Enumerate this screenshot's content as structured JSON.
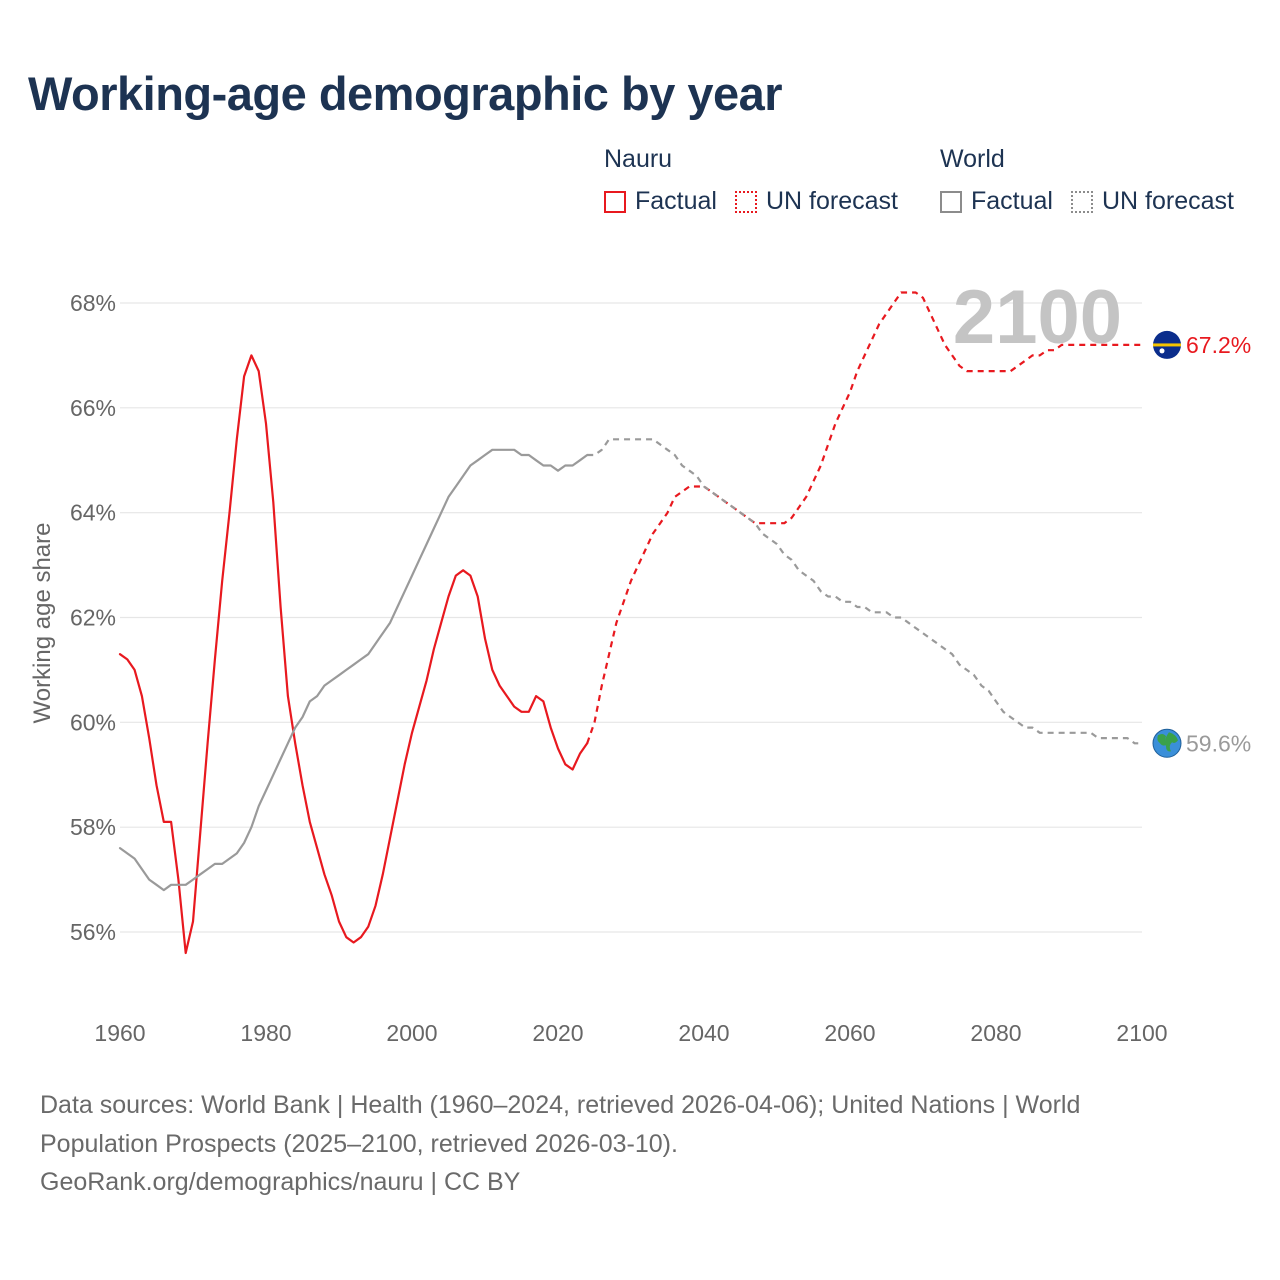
{
  "title": "Working-age demographic by year",
  "legend": {
    "nauru": {
      "name": "Nauru",
      "factual": "Factual",
      "forecast": "UN forecast"
    },
    "world": {
      "name": "World",
      "factual": "Factual",
      "forecast": "UN forecast"
    }
  },
  "footer": {
    "line1": "Data sources: World Bank | Health (1960–2024, retrieved 2026-04-06); United Nations | World",
    "line2": "Population Prospects (2025–2100, retrieved 2026-03-10).",
    "line3": "GeoRank.org/demographics/nauru | CC BY"
  },
  "colors": {
    "nauru": "#e8191f",
    "world": "#9a9a9a",
    "grid": "#e6e6e6",
    "tick": "#666666",
    "watermark": "#c4c4c4"
  },
  "chart_data": {
    "type": "line",
    "title": "Working-age demographic by year",
    "xlabel": "",
    "ylabel": "Working age share",
    "xlim": [
      1960,
      2100
    ],
    "ylim": [
      55,
      69
    ],
    "x_ticks": [
      1960,
      1980,
      2000,
      2020,
      2040,
      2060,
      2080,
      2100
    ],
    "y_ticks": [
      56,
      58,
      60,
      62,
      64,
      66,
      68
    ],
    "y_tick_labels": [
      "56%",
      "58%",
      "60%",
      "62%",
      "64%",
      "66%",
      "68%"
    ],
    "year_watermark": "2100",
    "series": [
      {
        "name": "Nauru",
        "segment": "Factual",
        "style": "solid",
        "color": "#e8191f",
        "points": [
          [
            1960,
            61.3
          ],
          [
            1961,
            61.2
          ],
          [
            1962,
            61.0
          ],
          [
            1963,
            60.5
          ],
          [
            1964,
            59.7
          ],
          [
            1965,
            58.8
          ],
          [
            1966,
            58.1
          ],
          [
            1967,
            58.1
          ],
          [
            1968,
            57.0
          ],
          [
            1969,
            55.6
          ],
          [
            1970,
            56.2
          ],
          [
            1971,
            57.9
          ],
          [
            1972,
            59.6
          ],
          [
            1973,
            61.2
          ],
          [
            1974,
            62.7
          ],
          [
            1975,
            64.0
          ],
          [
            1976,
            65.4
          ],
          [
            1977,
            66.6
          ],
          [
            1978,
            67.0
          ],
          [
            1979,
            66.7
          ],
          [
            1980,
            65.7
          ],
          [
            1981,
            64.2
          ],
          [
            1982,
            62.2
          ],
          [
            1983,
            60.5
          ],
          [
            1984,
            59.6
          ],
          [
            1985,
            58.8
          ],
          [
            1986,
            58.1
          ],
          [
            1987,
            57.6
          ],
          [
            1988,
            57.1
          ],
          [
            1989,
            56.7
          ],
          [
            1990,
            56.2
          ],
          [
            1991,
            55.9
          ],
          [
            1992,
            55.8
          ],
          [
            1993,
            55.9
          ],
          [
            1994,
            56.1
          ],
          [
            1995,
            56.5
          ],
          [
            1996,
            57.1
          ],
          [
            1997,
            57.8
          ],
          [
            1998,
            58.5
          ],
          [
            1999,
            59.2
          ],
          [
            2000,
            59.8
          ],
          [
            2001,
            60.3
          ],
          [
            2002,
            60.8
          ],
          [
            2003,
            61.4
          ],
          [
            2004,
            61.9
          ],
          [
            2005,
            62.4
          ],
          [
            2006,
            62.8
          ],
          [
            2007,
            62.9
          ],
          [
            2008,
            62.8
          ],
          [
            2009,
            62.4
          ],
          [
            2010,
            61.6
          ],
          [
            2011,
            61.0
          ],
          [
            2012,
            60.7
          ],
          [
            2013,
            60.5
          ],
          [
            2014,
            60.3
          ],
          [
            2015,
            60.2
          ],
          [
            2016,
            60.2
          ],
          [
            2017,
            60.5
          ],
          [
            2018,
            60.4
          ],
          [
            2019,
            59.9
          ],
          [
            2020,
            59.5
          ],
          [
            2021,
            59.2
          ],
          [
            2022,
            59.1
          ],
          [
            2023,
            59.4
          ],
          [
            2024,
            59.6
          ]
        ]
      },
      {
        "name": "Nauru",
        "segment": "UN forecast",
        "style": "dashed",
        "color": "#e8191f",
        "points": [
          [
            2024,
            59.6
          ],
          [
            2025,
            60.0
          ],
          [
            2026,
            60.7
          ],
          [
            2027,
            61.3
          ],
          [
            2028,
            61.9
          ],
          [
            2029,
            62.3
          ],
          [
            2030,
            62.7
          ],
          [
            2031,
            63.0
          ],
          [
            2032,
            63.3
          ],
          [
            2033,
            63.6
          ],
          [
            2034,
            63.8
          ],
          [
            2035,
            64.0
          ],
          [
            2036,
            64.3
          ],
          [
            2037,
            64.4
          ],
          [
            2038,
            64.5
          ],
          [
            2039,
            64.5
          ],
          [
            2040,
            64.5
          ],
          [
            2041,
            64.4
          ],
          [
            2042,
            64.3
          ],
          [
            2043,
            64.2
          ],
          [
            2044,
            64.1
          ],
          [
            2045,
            64.0
          ],
          [
            2046,
            63.9
          ],
          [
            2047,
            63.8
          ],
          [
            2048,
            63.8
          ],
          [
            2049,
            63.8
          ],
          [
            2050,
            63.8
          ],
          [
            2051,
            63.8
          ],
          [
            2052,
            63.9
          ],
          [
            2053,
            64.1
          ],
          [
            2054,
            64.3
          ],
          [
            2055,
            64.6
          ],
          [
            2056,
            64.9
          ],
          [
            2057,
            65.3
          ],
          [
            2058,
            65.7
          ],
          [
            2059,
            66.0
          ],
          [
            2060,
            66.3
          ],
          [
            2061,
            66.7
          ],
          [
            2062,
            67.0
          ],
          [
            2063,
            67.3
          ],
          [
            2064,
            67.6
          ],
          [
            2065,
            67.8
          ],
          [
            2066,
            68.0
          ],
          [
            2067,
            68.2
          ],
          [
            2068,
            68.2
          ],
          [
            2069,
            68.2
          ],
          [
            2070,
            68.1
          ],
          [
            2071,
            67.8
          ],
          [
            2072,
            67.5
          ],
          [
            2073,
            67.2
          ],
          [
            2074,
            67.0
          ],
          [
            2075,
            66.8
          ],
          [
            2076,
            66.7
          ],
          [
            2077,
            66.7
          ],
          [
            2078,
            66.7
          ],
          [
            2079,
            66.7
          ],
          [
            2080,
            66.7
          ],
          [
            2081,
            66.7
          ],
          [
            2082,
            66.7
          ],
          [
            2083,
            66.8
          ],
          [
            2084,
            66.9
          ],
          [
            2085,
            67.0
          ],
          [
            2086,
            67.0
          ],
          [
            2087,
            67.1
          ],
          [
            2088,
            67.1
          ],
          [
            2089,
            67.2
          ],
          [
            2090,
            67.2
          ],
          [
            2091,
            67.2
          ],
          [
            2092,
            67.2
          ],
          [
            2093,
            67.2
          ],
          [
            2094,
            67.2
          ],
          [
            2095,
            67.2
          ],
          [
            2096,
            67.2
          ],
          [
            2097,
            67.2
          ],
          [
            2098,
            67.2
          ],
          [
            2099,
            67.2
          ],
          [
            2100,
            67.2
          ]
        ]
      },
      {
        "name": "World",
        "segment": "Factual",
        "style": "solid",
        "color": "#9a9a9a",
        "points": [
          [
            1960,
            57.6
          ],
          [
            1961,
            57.5
          ],
          [
            1962,
            57.4
          ],
          [
            1963,
            57.2
          ],
          [
            1964,
            57.0
          ],
          [
            1965,
            56.9
          ],
          [
            1966,
            56.8
          ],
          [
            1967,
            56.9
          ],
          [
            1968,
            56.9
          ],
          [
            1969,
            56.9
          ],
          [
            1970,
            57.0
          ],
          [
            1971,
            57.1
          ],
          [
            1972,
            57.2
          ],
          [
            1973,
            57.3
          ],
          [
            1974,
            57.3
          ],
          [
            1975,
            57.4
          ],
          [
            1976,
            57.5
          ],
          [
            1977,
            57.7
          ],
          [
            1978,
            58.0
          ],
          [
            1979,
            58.4
          ],
          [
            1980,
            58.7
          ],
          [
            1981,
            59.0
          ],
          [
            1982,
            59.3
          ],
          [
            1983,
            59.6
          ],
          [
            1984,
            59.9
          ],
          [
            1985,
            60.1
          ],
          [
            1986,
            60.4
          ],
          [
            1987,
            60.5
          ],
          [
            1988,
            60.7
          ],
          [
            1989,
            60.8
          ],
          [
            1990,
            60.9
          ],
          [
            1991,
            61.0
          ],
          [
            1992,
            61.1
          ],
          [
            1993,
            61.2
          ],
          [
            1994,
            61.3
          ],
          [
            1995,
            61.5
          ],
          [
            1996,
            61.7
          ],
          [
            1997,
            61.9
          ],
          [
            1998,
            62.2
          ],
          [
            1999,
            62.5
          ],
          [
            2000,
            62.8
          ],
          [
            2001,
            63.1
          ],
          [
            2002,
            63.4
          ],
          [
            2003,
            63.7
          ],
          [
            2004,
            64.0
          ],
          [
            2005,
            64.3
          ],
          [
            2006,
            64.5
          ],
          [
            2007,
            64.7
          ],
          [
            2008,
            64.9
          ],
          [
            2009,
            65.0
          ],
          [
            2010,
            65.1
          ],
          [
            2011,
            65.2
          ],
          [
            2012,
            65.2
          ],
          [
            2013,
            65.2
          ],
          [
            2014,
            65.2
          ],
          [
            2015,
            65.1
          ],
          [
            2016,
            65.1
          ],
          [
            2017,
            65.0
          ],
          [
            2018,
            64.9
          ],
          [
            2019,
            64.9
          ],
          [
            2020,
            64.8
          ],
          [
            2021,
            64.9
          ],
          [
            2022,
            64.9
          ],
          [
            2023,
            65.0
          ],
          [
            2024,
            65.1
          ]
        ]
      },
      {
        "name": "World",
        "segment": "UN forecast",
        "style": "dashed",
        "color": "#9a9a9a",
        "points": [
          [
            2024,
            65.1
          ],
          [
            2025,
            65.1
          ],
          [
            2026,
            65.2
          ],
          [
            2027,
            65.4
          ],
          [
            2028,
            65.4
          ],
          [
            2029,
            65.4
          ],
          [
            2030,
            65.4
          ],
          [
            2031,
            65.4
          ],
          [
            2032,
            65.4
          ],
          [
            2033,
            65.4
          ],
          [
            2034,
            65.3
          ],
          [
            2035,
            65.2
          ],
          [
            2036,
            65.1
          ],
          [
            2037,
            64.9
          ],
          [
            2038,
            64.8
          ],
          [
            2039,
            64.7
          ],
          [
            2040,
            64.5
          ],
          [
            2041,
            64.4
          ],
          [
            2042,
            64.3
          ],
          [
            2043,
            64.2
          ],
          [
            2044,
            64.1
          ],
          [
            2045,
            64.0
          ],
          [
            2046,
            63.9
          ],
          [
            2047,
            63.8
          ],
          [
            2048,
            63.6
          ],
          [
            2049,
            63.5
          ],
          [
            2050,
            63.4
          ],
          [
            2051,
            63.2
          ],
          [
            2052,
            63.1
          ],
          [
            2053,
            62.9
          ],
          [
            2054,
            62.8
          ],
          [
            2055,
            62.7
          ],
          [
            2056,
            62.5
          ],
          [
            2057,
            62.4
          ],
          [
            2058,
            62.4
          ],
          [
            2059,
            62.3
          ],
          [
            2060,
            62.3
          ],
          [
            2061,
            62.2
          ],
          [
            2062,
            62.2
          ],
          [
            2063,
            62.1
          ],
          [
            2064,
            62.1
          ],
          [
            2065,
            62.1
          ],
          [
            2066,
            62.0
          ],
          [
            2067,
            62.0
          ],
          [
            2068,
            61.9
          ],
          [
            2069,
            61.8
          ],
          [
            2070,
            61.7
          ],
          [
            2071,
            61.6
          ],
          [
            2072,
            61.5
          ],
          [
            2073,
            61.4
          ],
          [
            2074,
            61.3
          ],
          [
            2075,
            61.1
          ],
          [
            2076,
            61.0
          ],
          [
            2077,
            60.9
          ],
          [
            2078,
            60.7
          ],
          [
            2079,
            60.6
          ],
          [
            2080,
            60.4
          ],
          [
            2081,
            60.2
          ],
          [
            2082,
            60.1
          ],
          [
            2083,
            60.0
          ],
          [
            2084,
            59.9
          ],
          [
            2085,
            59.9
          ],
          [
            2086,
            59.8
          ],
          [
            2087,
            59.8
          ],
          [
            2088,
            59.8
          ],
          [
            2089,
            59.8
          ],
          [
            2090,
            59.8
          ],
          [
            2091,
            59.8
          ],
          [
            2092,
            59.8
          ],
          [
            2093,
            59.8
          ],
          [
            2094,
            59.7
          ],
          [
            2095,
            59.7
          ],
          [
            2096,
            59.7
          ],
          [
            2097,
            59.7
          ],
          [
            2098,
            59.7
          ],
          [
            2099,
            59.6
          ],
          [
            2100,
            59.6
          ]
        ]
      }
    ],
    "end_labels": [
      {
        "series": "Nauru",
        "value": 67.2,
        "label": "67.2%",
        "marker": "nauru-flag"
      },
      {
        "series": "World",
        "value": 59.6,
        "label": "59.6%",
        "marker": "globe"
      }
    ]
  }
}
